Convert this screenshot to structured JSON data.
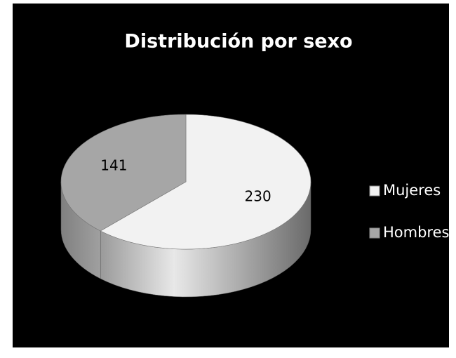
{
  "chart_data": {
    "type": "pie",
    "title": "Distribución por sexo",
    "categories": [
      "Mujeres",
      "Hombres"
    ],
    "values": [
      230,
      141
    ],
    "colors": [
      "#f2f2f2",
      "#a6a6a6"
    ],
    "legend": "right"
  }
}
